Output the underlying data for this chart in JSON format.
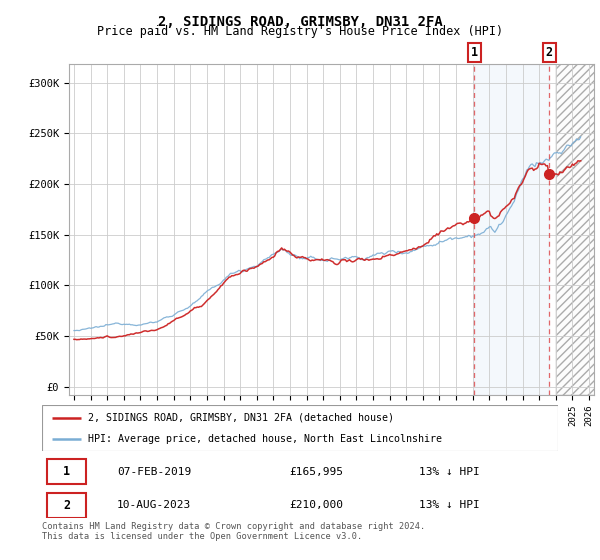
{
  "title": "2, SIDINGS ROAD, GRIMSBY, DN31 2FA",
  "subtitle": "Price paid vs. HM Land Registry's House Price Index (HPI)",
  "title_fontsize": 10,
  "subtitle_fontsize": 8.5,
  "background_color": "#ffffff",
  "plot_bg_color": "#ffffff",
  "grid_color": "#cccccc",
  "hpi_color": "#7aadd4",
  "price_color": "#cc2222",
  "dashed_line_color": "#dd4444",
  "yticks": [
    0,
    50000,
    100000,
    150000,
    200000,
    250000,
    300000
  ],
  "ytick_labels": [
    "£0",
    "£50K",
    "£100K",
    "£150K",
    "£200K",
    "£250K",
    "£300K"
  ],
  "ylim": [
    -8000,
    318000
  ],
  "sale1_x": 2019.1,
  "sale1_price": 165995,
  "sale2_x": 2023.6,
  "sale2_price": 210000,
  "hatch_start": 2024.0,
  "xmin": 1994.7,
  "xmax": 2026.3,
  "legend_line1": "2, SIDINGS ROAD, GRIMSBY, DN31 2FA (detached house)",
  "legend_line2": "HPI: Average price, detached house, North East Lincolnshire",
  "footer1": "Contains HM Land Registry data © Crown copyright and database right 2024.",
  "footer2": "This data is licensed under the Open Government Licence v3.0.",
  "table_row1": [
    "1",
    "07-FEB-2019",
    "£165,995",
    "13% ↓ HPI"
  ],
  "table_row2": [
    "2",
    "10-AUG-2023",
    "£210,000",
    "13% ↓ HPI"
  ]
}
